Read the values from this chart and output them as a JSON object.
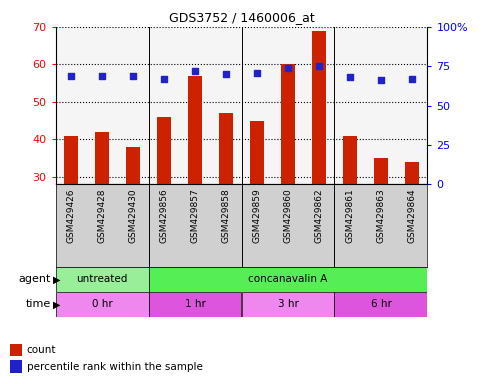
{
  "title": "GDS3752 / 1460006_at",
  "samples": [
    "GSM429426",
    "GSM429428",
    "GSM429430",
    "GSM429856",
    "GSM429857",
    "GSM429858",
    "GSM429859",
    "GSM429860",
    "GSM429862",
    "GSM429861",
    "GSM429863",
    "GSM429864"
  ],
  "counts": [
    41,
    42,
    38,
    46,
    57,
    47,
    45,
    60,
    69,
    41,
    35,
    34
  ],
  "percentile_ranks": [
    69,
    69,
    69,
    67,
    72,
    70,
    71,
    74,
    75,
    68,
    66,
    67
  ],
  "ylim_left": [
    28,
    70
  ],
  "ylim_right": [
    0,
    100
  ],
  "yticks_left": [
    30,
    40,
    50,
    60,
    70
  ],
  "yticks_right": [
    0,
    25,
    50,
    75,
    100
  ],
  "bar_color": "#cc2200",
  "dot_color": "#2222cc",
  "agent_groups": [
    {
      "label": "untreated",
      "start": 0,
      "end": 3,
      "color": "#99ee99"
    },
    {
      "label": "concanavalin A",
      "start": 3,
      "end": 12,
      "color": "#55ee55"
    }
  ],
  "time_groups": [
    {
      "label": "0 hr",
      "start": 0,
      "end": 3,
      "color": "#ee88ee"
    },
    {
      "label": "1 hr",
      "start": 3,
      "end": 6,
      "color": "#dd55dd"
    },
    {
      "label": "3 hr",
      "start": 6,
      "end": 9,
      "color": "#ee88ee"
    },
    {
      "label": "6 hr",
      "start": 9,
      "end": 12,
      "color": "#dd55dd"
    }
  ],
  "legend_count_color": "#cc2200",
  "legend_pct_color": "#2222cc",
  "tick_bg_color": "#d0d0d0",
  "plot_bg_color": "#f5f5f5",
  "group_borders": [
    2.5,
    5.5,
    8.5
  ]
}
